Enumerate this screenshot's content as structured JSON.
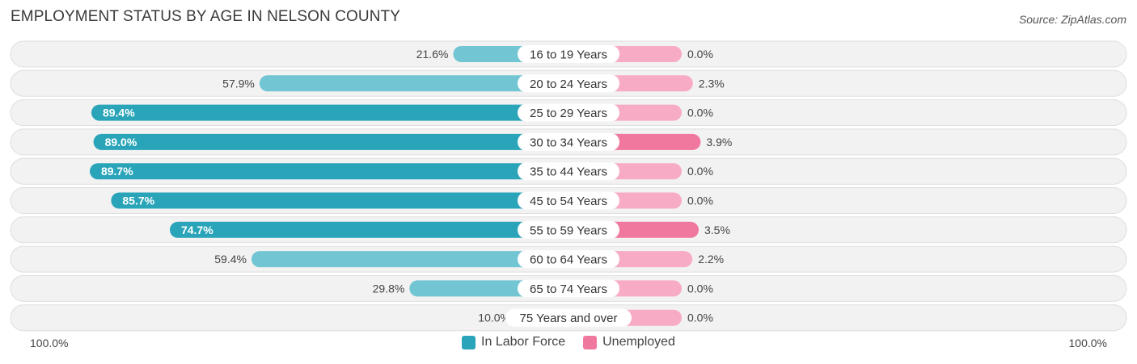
{
  "header": {
    "title": "EMPLOYMENT STATUS BY AGE IN NELSON COUNTY",
    "source": "Source: ZipAtlas.com"
  },
  "axis": {
    "left_label": "100.0%",
    "right_label": "100.0%"
  },
  "legend": {
    "labor_force": "In Labor Force",
    "unemployed": "Unemployed"
  },
  "colors": {
    "labor_force_strong": "#2aa4b8",
    "labor_force_light": "#72c5d2",
    "unemployed_strong": "#f0789e",
    "unemployed_light": "#f7abc4",
    "row_background": "#f2f2f2",
    "row_border": "#dedede"
  },
  "chart_data": {
    "type": "bar",
    "orientation": "horizontal-diverging",
    "title": "EMPLOYMENT STATUS BY AGE IN NELSON COUNTY",
    "categories": [
      "16 to 19 Years",
      "20 to 24 Years",
      "25 to 29 Years",
      "30 to 34 Years",
      "35 to 44 Years",
      "45 to 54 Years",
      "55 to 59 Years",
      "60 to 64 Years",
      "65 to 74 Years",
      "75 Years and over"
    ],
    "series": [
      {
        "name": "In Labor Force",
        "values": [
          21.6,
          57.9,
          89.4,
          89.0,
          89.7,
          85.7,
          74.7,
          59.4,
          29.8,
          10.0
        ],
        "labels": [
          "21.6%",
          "57.9%",
          "89.4%",
          "89.0%",
          "89.7%",
          "85.7%",
          "74.7%",
          "59.4%",
          "29.8%",
          "10.0%"
        ]
      },
      {
        "name": "Unemployed",
        "values": [
          0.0,
          2.3,
          0.0,
          3.9,
          0.0,
          0.0,
          3.5,
          2.2,
          0.0,
          0.0
        ],
        "labels": [
          "0.0%",
          "2.3%",
          "0.0%",
          "3.9%",
          "0.0%",
          "0.0%",
          "3.5%",
          "2.2%",
          "0.0%",
          "0.0%"
        ]
      }
    ],
    "xlim": [
      -100,
      100
    ],
    "legend_position": "bottom-center"
  }
}
